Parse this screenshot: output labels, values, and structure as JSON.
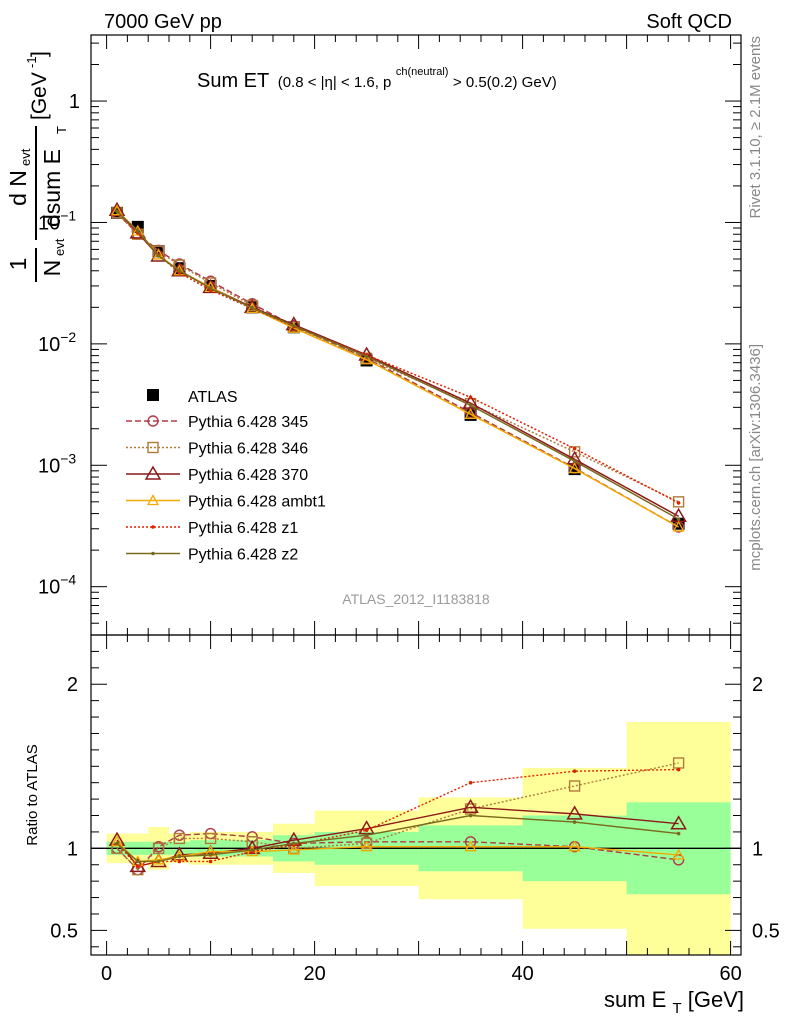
{
  "header": {
    "left": "7000 GeV pp",
    "right": "Soft QCD"
  },
  "side_labels": {
    "rivet": "Rivet 3.1.10, ≥ 2.1M events",
    "mcplots": "mcplots.cern.ch [arXiv:1306.3436]"
  },
  "watermark": "ATLAS_2012_I1183818",
  "colors": {
    "atlas": "#000000",
    "p345": "#b03a48",
    "p346": "#b07a3a",
    "p370": "#8b1a1a",
    "ambt1": "#f2a900",
    "z1": "#dd2200",
    "z2": "#7a6a1e",
    "band_inner": "#99ff99",
    "band_outer": "#ffff99"
  },
  "chart_data": [
    {
      "type": "line",
      "title": "Sum ET",
      "title_detail": "(0.8 < |η| < 1.6, p",
      "title_sup": "ch(neutral)",
      "title_tail": " > 0.5(0.2) GeV)",
      "ylabel_main": "[GeV",
      "ylabel_frac_top": "d N",
      "ylabel_frac_bottom": "dsum E",
      "ylabel_prefix_top": "1",
      "ylabel_prefix_bottom": "N",
      "yscale": "log",
      "ylim": [
        4e-05,
        3.5
      ],
      "xlim": [
        -1.5,
        61
      ],
      "y_ticks": [
        {
          "value": 1,
          "base": "1",
          "exp": ""
        },
        {
          "value": 0.1,
          "base": "10",
          "exp": "−1"
        },
        {
          "value": 0.01,
          "base": "10",
          "exp": "−2"
        },
        {
          "value": 0.001,
          "base": "10",
          "exp": "−3"
        },
        {
          "value": 0.0001,
          "base": "10",
          "exp": "−4"
        }
      ],
      "legend_position": "lower-left",
      "x": [
        1,
        3,
        5,
        7,
        10,
        14,
        18,
        25,
        35,
        45,
        55
      ],
      "x_edges": [
        0,
        2,
        4,
        6,
        8,
        12,
        16,
        20,
        30,
        40,
        50,
        60
      ],
      "atlas": [
        0.12,
        0.092,
        0.058,
        0.042,
        0.03,
        0.02,
        0.0137,
        0.0073,
        0.0026,
        0.00093,
        0.00033
      ],
      "series": [
        {
          "name": "Pythia 6.428 345",
          "key": "p345",
          "marker": "circle",
          "dash": "6,3",
          "values": [
            0.12,
            0.08,
            0.059,
            0.0455,
            0.0328,
            0.0214,
            0.0141,
            0.0076,
            0.00272,
            0.00095,
            0.00031
          ]
        },
        {
          "name": "Pythia 6.428 346",
          "key": "p346",
          "marker": "square",
          "dash": "2,2",
          "values": [
            0.12,
            0.08,
            0.058,
            0.0445,
            0.0317,
            0.0207,
            0.0137,
            0.0076,
            0.00322,
            0.00129,
            0.0005
          ]
        },
        {
          "name": "Pythia 6.428 370",
          "key": "p370",
          "marker": "triangle",
          "dash": "",
          "values": [
            0.126,
            0.082,
            0.053,
            0.04,
            0.0292,
            0.02,
            0.0144,
            0.0081,
            0.00325,
            0.00112,
            0.00038
          ]
        },
        {
          "name": "Pythia 6.428 ambt1",
          "key": "ambt1",
          "marker": "triangle-small",
          "dash": "",
          "values": [
            0.125,
            0.085,
            0.054,
            0.04,
            0.0292,
            0.0196,
            0.0135,
            0.0074,
            0.00263,
            0.00094,
            0.00031
          ]
        },
        {
          "name": "Pythia 6.428 z1",
          "key": "z1",
          "marker": "dot",
          "dash": "2,2",
          "values": [
            0.124,
            0.082,
            0.054,
            0.0385,
            0.0277,
            0.0196,
            0.0139,
            0.0081,
            0.00363,
            0.00137,
            0.00049
          ]
        },
        {
          "name": "Pythia 6.428 z2",
          "key": "z2",
          "marker": "dot",
          "dash": "",
          "values": [
            0.124,
            0.085,
            0.053,
            0.04,
            0.0287,
            0.0198,
            0.0141,
            0.0079,
            0.00312,
            0.00108,
            0.00036
          ]
        }
      ]
    },
    {
      "type": "line",
      "ylabel": "Ratio to ATLAS",
      "xlabel": "sum E",
      "xlabel_sub": "T",
      "xlabel_unit": " [GeV]",
      "ylim": [
        0.35,
        2.3
      ],
      "xlim": [
        -1.5,
        61
      ],
      "y_ticks": [
        0.5,
        1,
        2
      ],
      "x_ticks": [
        0,
        20,
        40,
        60
      ],
      "reference": 1,
      "band_inner": [
        0.04,
        0.04,
        0.04,
        0.04,
        0.05,
        0.05,
        0.08,
        0.1,
        0.14,
        0.2,
        0.28
      ],
      "band_outer": [
        0.09,
        0.09,
        0.13,
        0.09,
        0.1,
        0.1,
        0.15,
        0.23,
        0.31,
        0.49,
        0.77
      ],
      "series": [
        {
          "key": "p345",
          "values": [
            1.0,
            0.87,
            1.01,
            1.08,
            1.09,
            1.07,
            1.03,
            1.04,
            1.04,
            1.01,
            0.93
          ]
        },
        {
          "key": "p346",
          "values": [
            1.0,
            0.87,
            1.0,
            1.06,
            1.06,
            1.04,
            1.0,
            1.03,
            1.24,
            1.38,
            1.52
          ]
        },
        {
          "key": "p370",
          "values": [
            1.05,
            0.89,
            0.92,
            0.96,
            0.97,
            1.0,
            1.05,
            1.12,
            1.25,
            1.21,
            1.15
          ]
        },
        {
          "key": "ambt1",
          "values": [
            1.04,
            0.92,
            0.93,
            0.95,
            0.98,
            0.98,
            0.99,
            1.01,
            1.01,
            1.01,
            0.96
          ]
        },
        {
          "key": "z1",
          "values": [
            1.03,
            0.89,
            0.92,
            0.92,
            0.92,
            0.98,
            1.02,
            1.11,
            1.4,
            1.47,
            1.48
          ]
        },
        {
          "key": "z2",
          "values": [
            1.03,
            0.92,
            0.92,
            0.95,
            0.96,
            0.99,
            1.03,
            1.08,
            1.2,
            1.16,
            1.09
          ]
        }
      ]
    }
  ]
}
